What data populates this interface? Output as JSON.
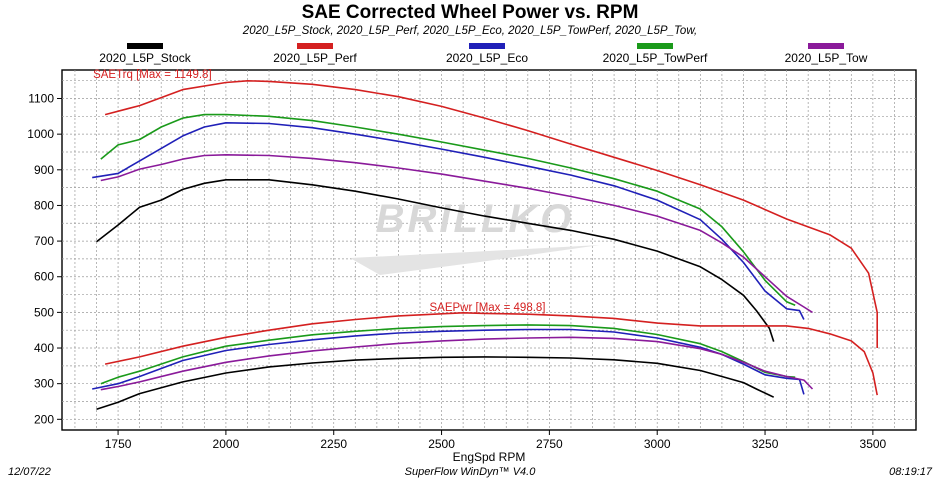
{
  "title": "SAE Corrected Wheel Power vs. RPM",
  "subtitle": "2020_L5P_Stock, 2020_L5P_Perf, 2020_L5P_Eco, 2020_L5P_TowPerf, 2020_L5P_Tow,",
  "footer": {
    "date": "12/07/22",
    "software": "SuperFlow WinDyn™ V4.0",
    "time": "08:19:17"
  },
  "watermark": "BRILLKO",
  "chart_data": {
    "type": "line",
    "xlabel": "EngSpd RPM",
    "ylabel": "",
    "xlim": [
      1620,
      3600
    ],
    "ylim": [
      170,
      1180
    ],
    "xticks": [
      1750,
      2000,
      2250,
      2500,
      2750,
      3000,
      3250,
      3500
    ],
    "yticks": [
      200,
      300,
      400,
      500,
      600,
      700,
      800,
      900,
      1000,
      1100
    ],
    "grid": true,
    "legend_position": "top",
    "annotations": [
      {
        "text": "SAETrq [Max = 1149.8]",
        "x": 1750,
        "y": 1157,
        "color": "#d42020"
      },
      {
        "text": "SAEPwr [Max = 498.8]",
        "x": 2530,
        "y": 504,
        "color": "#d42020"
      }
    ],
    "series": [
      {
        "name": "2020_L5P_Stock",
        "color": "#000000",
        "torque": [
          [
            1700,
            698
          ],
          [
            1750,
            745
          ],
          [
            1800,
            795
          ],
          [
            1850,
            815
          ],
          [
            1900,
            845
          ],
          [
            1950,
            862
          ],
          [
            2000,
            872
          ],
          [
            2100,
            872
          ],
          [
            2200,
            858
          ],
          [
            2300,
            840
          ],
          [
            2400,
            818
          ],
          [
            2500,
            793
          ],
          [
            2600,
            770
          ],
          [
            2700,
            750
          ],
          [
            2800,
            730
          ],
          [
            2900,
            705
          ],
          [
            3000,
            672
          ],
          [
            3100,
            628
          ],
          [
            3150,
            592
          ],
          [
            3200,
            548
          ],
          [
            3230,
            505
          ],
          [
            3260,
            455
          ],
          [
            3270,
            418
          ]
        ],
        "power": [
          [
            1700,
            228
          ],
          [
            1750,
            248
          ],
          [
            1800,
            272
          ],
          [
            1900,
            305
          ],
          [
            2000,
            330
          ],
          [
            2100,
            347
          ],
          [
            2200,
            358
          ],
          [
            2300,
            366
          ],
          [
            2400,
            371
          ],
          [
            2500,
            374
          ],
          [
            2600,
            375
          ],
          [
            2700,
            374
          ],
          [
            2800,
            372
          ],
          [
            2900,
            367
          ],
          [
            3000,
            357
          ],
          [
            3100,
            337
          ],
          [
            3150,
            320
          ],
          [
            3200,
            303
          ],
          [
            3230,
            285
          ],
          [
            3260,
            268
          ],
          [
            3270,
            262
          ]
        ]
      },
      {
        "name": "2020_L5P_Perf",
        "color": "#d42020",
        "torque": [
          [
            1720,
            1055
          ],
          [
            1800,
            1080
          ],
          [
            1900,
            1125
          ],
          [
            2000,
            1145
          ],
          [
            2050,
            1149.8
          ],
          [
            2100,
            1148
          ],
          [
            2200,
            1140
          ],
          [
            2300,
            1125
          ],
          [
            2400,
            1105
          ],
          [
            2500,
            1078
          ],
          [
            2600,
            1045
          ],
          [
            2700,
            1010
          ],
          [
            2800,
            972
          ],
          [
            2900,
            935
          ],
          [
            3000,
            898
          ],
          [
            3100,
            858
          ],
          [
            3200,
            815
          ],
          [
            3300,
            762
          ],
          [
            3400,
            718
          ],
          [
            3450,
            680
          ],
          [
            3490,
            610
          ],
          [
            3510,
            500
          ],
          [
            3510,
            400
          ]
        ],
        "power": [
          [
            1720,
            355
          ],
          [
            1800,
            375
          ],
          [
            1900,
            405
          ],
          [
            2000,
            430
          ],
          [
            2100,
            450
          ],
          [
            2200,
            468
          ],
          [
            2300,
            480
          ],
          [
            2400,
            490
          ],
          [
            2500,
            496
          ],
          [
            2550,
            498.8
          ],
          [
            2600,
            497
          ],
          [
            2700,
            495
          ],
          [
            2800,
            490
          ],
          [
            2900,
            483
          ],
          [
            3000,
            470
          ],
          [
            3100,
            462
          ],
          [
            3200,
            462
          ],
          [
            3300,
            462
          ],
          [
            3350,
            455
          ],
          [
            3400,
            440
          ],
          [
            3450,
            420
          ],
          [
            3480,
            390
          ],
          [
            3500,
            330
          ],
          [
            3510,
            268
          ]
        ]
      },
      {
        "name": "2020_L5P_Eco",
        "color": "#2020b8",
        "torque": [
          [
            1690,
            878
          ],
          [
            1750,
            890
          ],
          [
            1800,
            925
          ],
          [
            1850,
            960
          ],
          [
            1900,
            995
          ],
          [
            1950,
            1020
          ],
          [
            2000,
            1032
          ],
          [
            2100,
            1030
          ],
          [
            2200,
            1018
          ],
          [
            2300,
            1000
          ],
          [
            2400,
            980
          ],
          [
            2500,
            958
          ],
          [
            2600,
            935
          ],
          [
            2700,
            910
          ],
          [
            2800,
            885
          ],
          [
            2900,
            855
          ],
          [
            3000,
            815
          ],
          [
            3100,
            760
          ],
          [
            3150,
            705
          ],
          [
            3200,
            640
          ],
          [
            3250,
            560
          ],
          [
            3300,
            510
          ],
          [
            3330,
            505
          ],
          [
            3340,
            480
          ]
        ],
        "power": [
          [
            1690,
            285
          ],
          [
            1750,
            300
          ],
          [
            1800,
            320
          ],
          [
            1900,
            365
          ],
          [
            2000,
            393
          ],
          [
            2100,
            410
          ],
          [
            2200,
            423
          ],
          [
            2300,
            434
          ],
          [
            2400,
            442
          ],
          [
            2500,
            447
          ],
          [
            2600,
            450
          ],
          [
            2700,
            452
          ],
          [
            2800,
            452
          ],
          [
            2900,
            445
          ],
          [
            3000,
            428
          ],
          [
            3100,
            402
          ],
          [
            3150,
            382
          ],
          [
            3200,
            355
          ],
          [
            3250,
            325
          ],
          [
            3300,
            315
          ],
          [
            3330,
            312
          ],
          [
            3340,
            270
          ]
        ]
      },
      {
        "name": "2020_L5P_TowPerf",
        "color": "#1a9a1a",
        "torque": [
          [
            1710,
            930
          ],
          [
            1750,
            970
          ],
          [
            1800,
            985
          ],
          [
            1850,
            1020
          ],
          [
            1900,
            1045
          ],
          [
            1950,
            1055
          ],
          [
            2000,
            1055
          ],
          [
            2100,
            1050
          ],
          [
            2200,
            1038
          ],
          [
            2300,
            1020
          ],
          [
            2400,
            1000
          ],
          [
            2500,
            978
          ],
          [
            2600,
            955
          ],
          [
            2700,
            932
          ],
          [
            2800,
            905
          ],
          [
            2900,
            875
          ],
          [
            3000,
            840
          ],
          [
            3100,
            790
          ],
          [
            3150,
            740
          ],
          [
            3200,
            670
          ],
          [
            3250,
            590
          ],
          [
            3300,
            530
          ],
          [
            3320,
            520
          ]
        ],
        "power": [
          [
            1710,
            300
          ],
          [
            1750,
            318
          ],
          [
            1800,
            335
          ],
          [
            1900,
            375
          ],
          [
            2000,
            405
          ],
          [
            2100,
            422
          ],
          [
            2200,
            437
          ],
          [
            2300,
            447
          ],
          [
            2400,
            455
          ],
          [
            2500,
            460
          ],
          [
            2600,
            463
          ],
          [
            2700,
            465
          ],
          [
            2800,
            463
          ],
          [
            2900,
            455
          ],
          [
            3000,
            438
          ],
          [
            3100,
            412
          ],
          [
            3150,
            390
          ],
          [
            3200,
            362
          ],
          [
            3250,
            332
          ],
          [
            3300,
            320
          ],
          [
            3320,
            318
          ]
        ]
      },
      {
        "name": "2020_L5P_Tow",
        "color": "#8a1a9a",
        "torque": [
          [
            1710,
            870
          ],
          [
            1750,
            880
          ],
          [
            1800,
            902
          ],
          [
            1850,
            915
          ],
          [
            1900,
            930
          ],
          [
            1950,
            940
          ],
          [
            2000,
            942
          ],
          [
            2100,
            940
          ],
          [
            2200,
            932
          ],
          [
            2300,
            920
          ],
          [
            2400,
            905
          ],
          [
            2500,
            888
          ],
          [
            2600,
            868
          ],
          [
            2700,
            848
          ],
          [
            2800,
            825
          ],
          [
            2900,
            800
          ],
          [
            3000,
            770
          ],
          [
            3100,
            730
          ],
          [
            3150,
            695
          ],
          [
            3200,
            655
          ],
          [
            3250,
            600
          ],
          [
            3300,
            545
          ],
          [
            3340,
            515
          ],
          [
            3360,
            500
          ]
        ],
        "power": [
          [
            1710,
            283
          ],
          [
            1750,
            292
          ],
          [
            1800,
            305
          ],
          [
            1900,
            335
          ],
          [
            2000,
            360
          ],
          [
            2100,
            378
          ],
          [
            2200,
            392
          ],
          [
            2300,
            403
          ],
          [
            2400,
            413
          ],
          [
            2500,
            420
          ],
          [
            2600,
            425
          ],
          [
            2700,
            428
          ],
          [
            2800,
            430
          ],
          [
            2900,
            427
          ],
          [
            3000,
            418
          ],
          [
            3100,
            398
          ],
          [
            3150,
            382
          ],
          [
            3200,
            360
          ],
          [
            3250,
            335
          ],
          [
            3300,
            320
          ],
          [
            3340,
            310
          ],
          [
            3360,
            285
          ]
        ]
      }
    ]
  }
}
